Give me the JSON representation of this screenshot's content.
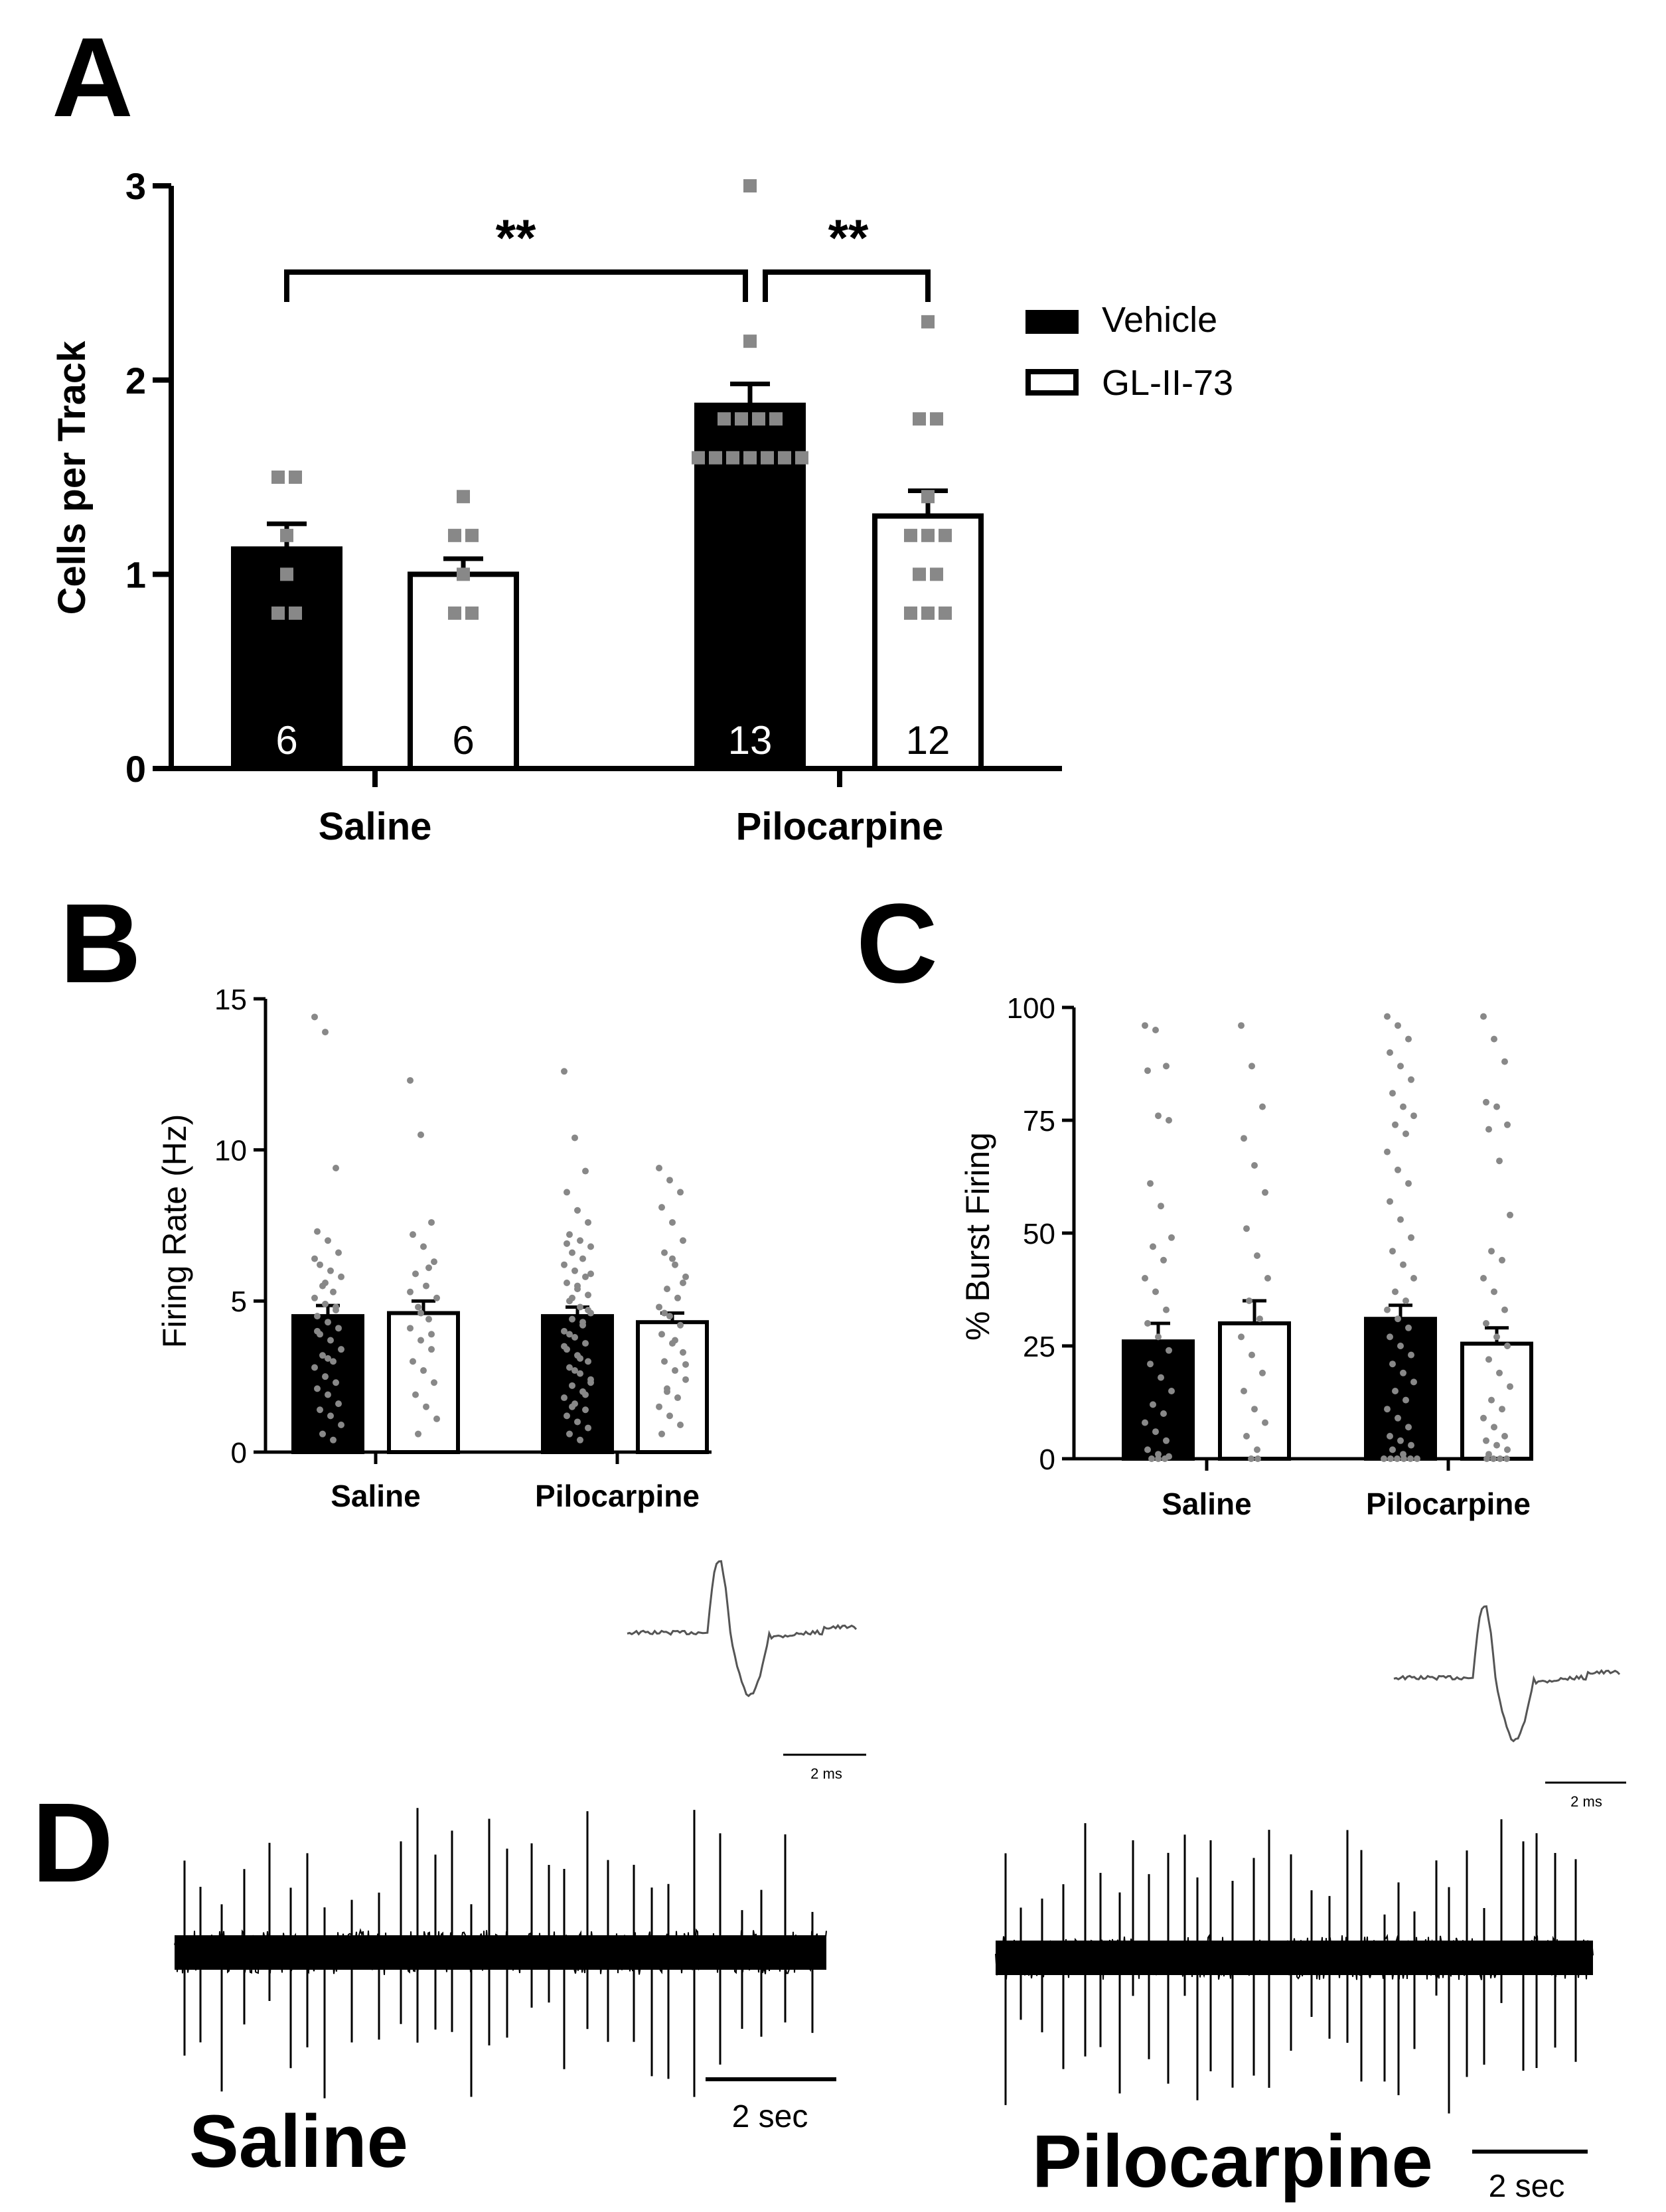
{
  "colors": {
    "vehicle": "#000000",
    "gl": "#ffffff",
    "dot": "#888888",
    "axis": "#000000"
  },
  "chart_data": [
    {
      "panel": "A",
      "type": "bar",
      "ylabel": "Cells per Track",
      "ylim": [
        0,
        3
      ],
      "yticks": [
        "0",
        "1",
        "2",
        "3"
      ],
      "categories": [
        "Saline",
        "Pilocarpine"
      ],
      "legend": {
        "placement": "right",
        "entries": [
          "Vehicle",
          "GL-II-73"
        ]
      },
      "series": [
        {
          "name": "Vehicle",
          "values": [
            1.13,
            1.87
          ],
          "sem": [
            0.13,
            0.11
          ],
          "n_labels": [
            "6",
            "13"
          ],
          "points": [
            [
              1.5,
              1.5,
              1.2,
              1.0,
              0.8,
              0.8
            ],
            [
              3.0,
              2.2,
              1.8,
              1.8,
              1.8,
              1.8,
              1.6,
              1.6,
              1.6,
              1.6,
              1.6,
              1.6,
              1.6
            ]
          ]
        },
        {
          "name": "GL-II-73",
          "values": [
            1.0,
            1.3
          ],
          "sem": [
            0.08,
            0.13
          ],
          "n_labels": [
            "6",
            "12"
          ],
          "points": [
            [
              1.4,
              1.2,
              1.2,
              1.0,
              0.8,
              0.8
            ],
            [
              2.3,
              1.8,
              1.8,
              1.4,
              1.2,
              1.2,
              1.2,
              1.0,
              1.0,
              0.8,
              0.8,
              0.8
            ]
          ]
        }
      ],
      "annotations": [
        {
          "text": "**",
          "from": "Saline-Vehicle",
          "to": "Pilocarpine-Vehicle"
        },
        {
          "text": "**",
          "from": "Pilocarpine-Vehicle",
          "to": "Pilocarpine-GL-II-73"
        }
      ]
    },
    {
      "panel": "B",
      "type": "bar",
      "ylabel": "Firing Rate  (Hz)",
      "ylim": [
        0,
        15
      ],
      "yticks": [
        "0",
        "5",
        "10",
        "15"
      ],
      "categories": [
        "Saline",
        "Pilocarpine"
      ],
      "series": [
        {
          "name": "Vehicle",
          "values": [
            4.5,
            4.5
          ],
          "sem": [
            0.35,
            0.3
          ]
        },
        {
          "name": "GL-II-73",
          "values": [
            4.6,
            4.3
          ],
          "sem": [
            0.4,
            0.3
          ]
        }
      ],
      "scatter_points": {
        "Saline-Vehicle": [
          14.4,
          13.9,
          9.4,
          7.3,
          7.0,
          6.6,
          6.2,
          6.0,
          5.8,
          5.5,
          5.3,
          5.1,
          4.9,
          4.7,
          4.5,
          4.3,
          4.1,
          3.9,
          3.7,
          3.4,
          3.2,
          3.0,
          2.8,
          2.5,
          2.3,
          2.1,
          1.9,
          1.6,
          1.4,
          1.2,
          0.9,
          0.6,
          0.4,
          6.4,
          5.6,
          4.8,
          4.0,
          3.1
        ],
        "Saline-GL-II-73": [
          12.3,
          10.5,
          7.6,
          7.2,
          6.8,
          6.3,
          5.9,
          5.5,
          5.1,
          4.8,
          4.4,
          4.1,
          3.7,
          3.4,
          3.0,
          2.7,
          2.3,
          1.9,
          1.5,
          1.1,
          0.6,
          6.1,
          5.3,
          4.6,
          3.9
        ],
        "Pilocarpine-Vehicle": [
          12.6,
          10.4,
          9.3,
          8.6,
          8.0,
          7.6,
          7.2,
          7.0,
          6.8,
          6.6,
          6.4,
          6.2,
          6.0,
          5.8,
          5.6,
          5.4,
          5.2,
          5.0,
          4.8,
          4.6,
          4.4,
          4.2,
          4.0,
          3.8,
          3.6,
          3.4,
          3.2,
          3.0,
          2.8,
          2.6,
          2.4,
          2.2,
          2.0,
          1.8,
          1.6,
          1.4,
          1.2,
          1.0,
          0.8,
          0.6,
          0.4,
          5.9,
          5.1,
          4.3,
          3.5,
          2.7,
          1.9,
          6.9,
          5.5,
          4.7,
          3.9,
          3.1,
          2.3,
          1.5
        ],
        "Pilocarpine-GL-II-73": [
          9.4,
          9.0,
          8.6,
          8.1,
          7.6,
          7.0,
          6.6,
          6.2,
          5.8,
          5.4,
          5.1,
          4.8,
          4.5,
          4.2,
          3.9,
          3.6,
          3.3,
          3.0,
          2.7,
          2.4,
          2.1,
          1.8,
          1.5,
          1.2,
          0.9,
          0.6,
          6.4,
          5.6,
          4.6,
          3.7,
          2.9,
          2.0
        ]
      }
    },
    {
      "panel": "C",
      "type": "bar",
      "ylabel": "% Burst Firing",
      "ylim": [
        0,
        100
      ],
      "yticks": [
        "0",
        "25",
        "50",
        "75",
        "100"
      ],
      "categories": [
        "Saline",
        "Pilocarpine"
      ],
      "series": [
        {
          "name": "Vehicle",
          "values": [
            26,
            31
          ],
          "sem": [
            4,
            3
          ]
        },
        {
          "name": "GL-II-73",
          "values": [
            30,
            25.5
          ],
          "sem": [
            5,
            3.5
          ]
        }
      ],
      "scatter_points": {
        "Saline-Vehicle": [
          96,
          95,
          87,
          86,
          76,
          75,
          61,
          56,
          49,
          47,
          44,
          40,
          37,
          33,
          30,
          27,
          24,
          21,
          18,
          15,
          12,
          10,
          8,
          6,
          4,
          2,
          1,
          0.5,
          0,
          0,
          0
        ],
        "Saline-GL-II-73": [
          96,
          87,
          78,
          71,
          65,
          59,
          51,
          45,
          40,
          35,
          31,
          27,
          23,
          19,
          15,
          11,
          8,
          5,
          2,
          0,
          0
        ],
        "Pilocarpine-Vehicle": [
          98,
          96,
          93,
          90,
          87,
          84,
          81,
          78,
          76,
          74,
          72,
          68,
          64,
          61,
          57,
          53,
          49,
          46,
          43,
          40,
          37,
          35,
          33,
          31,
          29,
          27,
          25,
          23,
          21,
          19,
          17,
          15,
          13,
          11,
          9,
          7,
          5,
          4,
          3,
          2,
          1,
          0,
          0,
          0,
          0,
          0,
          0
        ],
        "Pilocarpine-GL-II-73": [
          98,
          93,
          88,
          79,
          78,
          74,
          73,
          66,
          54,
          46,
          44,
          40,
          37,
          33,
          30,
          27,
          25,
          22,
          19,
          16,
          13,
          11,
          9,
          7,
          5,
          4,
          3,
          2,
          1,
          0,
          0,
          0,
          0
        ]
      }
    },
    {
      "panel": "D",
      "type": "line",
      "traces": [
        {
          "name": "Saline",
          "scalebar": "2 sec",
          "inset_scalebar": "2 ms"
        },
        {
          "name": "Pilocarpine",
          "scalebar": "2 sec",
          "inset_scalebar": "2 ms"
        }
      ]
    }
  ],
  "labels": {
    "A": "A",
    "B": "B",
    "C": "C",
    "D": "D"
  }
}
